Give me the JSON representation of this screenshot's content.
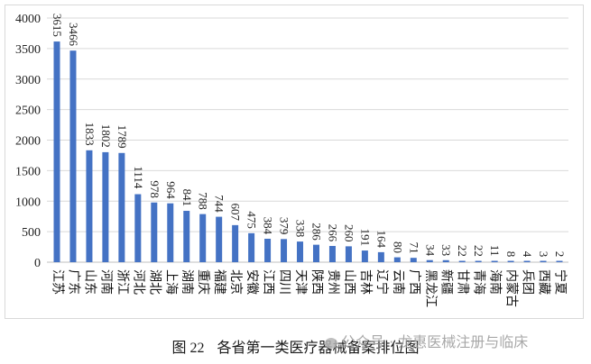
{
  "chart_data": {
    "type": "bar",
    "title": "",
    "xlabel": "",
    "ylabel": "",
    "ylim": [
      0,
      4000
    ],
    "yticks": [
      0,
      500,
      1000,
      1500,
      2000,
      2500,
      3000,
      3500,
      4000
    ],
    "grid": true,
    "legend": null,
    "bar_color": "#4472C4",
    "data_labels": true,
    "categories": [
      "江苏",
      "广东",
      "山东",
      "河南",
      "浙江",
      "河北",
      "湖北",
      "上海",
      "湖南",
      "重庆",
      "福建",
      "北京",
      "安徽",
      "江西",
      "四川",
      "天津",
      "陕西",
      "贵州",
      "山西",
      "吉林",
      "辽宁",
      "云南",
      "广西",
      "黑龙江",
      "新疆",
      "甘肃",
      "青海",
      "海南",
      "内蒙古",
      "兵团",
      "西藏",
      "宁夏"
    ],
    "values": [
      3615,
      3466,
      1833,
      1802,
      1789,
      1114,
      978,
      964,
      841,
      788,
      744,
      607,
      475,
      384,
      379,
      338,
      286,
      266,
      260,
      191,
      164,
      80,
      71,
      34,
      33,
      22,
      22,
      11,
      8,
      4,
      3,
      2
    ]
  },
  "caption": {
    "figure_label": "图 22",
    "text": "各省第一类医疗器械备案排位图"
  },
  "watermark": {
    "text": "公众号 · 龙惠医械注册与临床"
  }
}
